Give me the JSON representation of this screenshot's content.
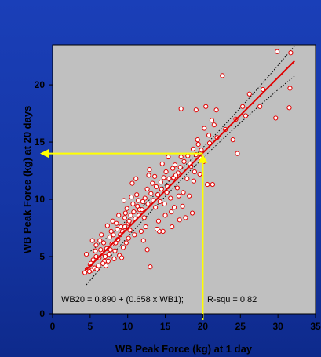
{
  "chart_data": {
    "type": "scatter",
    "title": "",
    "xlabel": "WB Peak Force (kg) at 1 day",
    "ylabel": "WB Peak Force (kg) at 20 days",
    "xlim": [
      0,
      35
    ],
    "ylim": [
      0,
      23.5
    ],
    "xticks": [
      "0",
      "5",
      "10",
      "15",
      "20",
      "25",
      "30",
      "35"
    ],
    "yticks": [
      "0",
      "5",
      "10",
      "15",
      "20"
    ],
    "grid": false,
    "plot_background": "#c0c0c0",
    "points": [
      [
        4.3,
        3.6
      ],
      [
        4.6,
        3.9
      ],
      [
        5.0,
        4.3
      ],
      [
        5.2,
        3.8
      ],
      [
        5.4,
        4.7
      ],
      [
        5.8,
        5.0
      ],
      [
        4.5,
        5.2
      ],
      [
        5.3,
        6.4
      ],
      [
        6.1,
        4.2
      ],
      [
        6.6,
        5.3
      ],
      [
        6.9,
        4.6
      ],
      [
        7.2,
        5.7
      ],
      [
        7.5,
        5.2
      ],
      [
        7.9,
        6.1
      ],
      [
        8.3,
        5.5
      ],
      [
        8.7,
        6.5
      ],
      [
        9.0,
        6.9
      ],
      [
        9.3,
        7.2
      ],
      [
        9.6,
        7.6
      ],
      [
        10.1,
        7.9
      ],
      [
        10.4,
        8.6
      ],
      [
        10.8,
        8.9
      ],
      [
        11.0,
        8.3
      ],
      [
        11.3,
        9.4
      ],
      [
        11.6,
        9.1
      ],
      [
        12.0,
        9.8
      ],
      [
        12.3,
        10.1
      ],
      [
        12.7,
        9.6
      ],
      [
        13.1,
        10.5
      ],
      [
        13.4,
        9.9
      ],
      [
        13.8,
        11.1
      ],
      [
        14.0,
        10.4
      ],
      [
        14.4,
        11.5
      ],
      [
        14.8,
        11.9
      ],
      [
        15.1,
        12.4
      ],
      [
        15.5,
        11.8
      ],
      [
        16.0,
        12.7
      ],
      [
        16.3,
        13.0
      ],
      [
        16.7,
        12.3
      ],
      [
        17.1,
        13.7
      ],
      [
        17.5,
        13.3
      ],
      [
        18.0,
        13.8
      ],
      [
        18.4,
        12.9
      ],
      [
        18.7,
        14.4
      ],
      [
        19.1,
        13.9
      ],
      [
        19.4,
        14.8
      ],
      [
        19.7,
        13.6
      ],
      [
        20.2,
        16.2
      ],
      [
        20.8,
        15.6
      ],
      [
        21.2,
        16.9
      ],
      [
        21.5,
        16.5
      ],
      [
        21.3,
        11.3
      ],
      [
        20.6,
        11.3
      ],
      [
        23.0,
        16.1
      ],
      [
        22.6,
        20.8
      ],
      [
        24.0,
        15.2
      ],
      [
        24.6,
        14.0
      ],
      [
        24.4,
        17.0
      ],
      [
        25.3,
        18.1
      ],
      [
        25.7,
        17.3
      ],
      [
        26.2,
        19.2
      ],
      [
        27.6,
        18.1
      ],
      [
        28.0,
        19.6
      ],
      [
        29.7,
        17.1
      ],
      [
        29.9,
        22.9
      ],
      [
        31.5,
        18.0
      ],
      [
        31.7,
        22.8
      ],
      [
        31.6,
        19.7
      ],
      [
        19.1,
        17.8
      ],
      [
        17.1,
        17.9
      ],
      [
        21.8,
        17.8
      ],
      [
        20.4,
        18.1
      ],
      [
        12.4,
        7.6
      ],
      [
        13.0,
        4.1
      ],
      [
        12.6,
        5.6
      ],
      [
        14.2,
        7.2
      ],
      [
        15.8,
        8.9
      ],
      [
        17.7,
        8.4
      ],
      [
        18.6,
        8.8
      ],
      [
        10.1,
        6.6
      ],
      [
        9.4,
        5.8
      ],
      [
        8.2,
        4.8
      ],
      [
        7.1,
        4.2
      ],
      [
        6.4,
        5.6
      ],
      [
        6.8,
        6.2
      ],
      [
        7.6,
        6.7
      ],
      [
        8.4,
        6.2
      ],
      [
        9.1,
        7.6
      ],
      [
        9.6,
        8.4
      ],
      [
        10.3,
        7.3
      ],
      [
        10.7,
        9.6
      ],
      [
        11.2,
        10.4
      ],
      [
        11.9,
        9.1
      ],
      [
        12.2,
        8.4
      ],
      [
        12.6,
        10.9
      ],
      [
        13.3,
        11.4
      ],
      [
        13.7,
        9.3
      ],
      [
        14.1,
        8.1
      ],
      [
        14.5,
        10.9
      ],
      [
        14.9,
        9.6
      ],
      [
        15.3,
        11.1
      ],
      [
        15.7,
        10.1
      ],
      [
        16.1,
        11.9
      ],
      [
        16.6,
        11.0
      ],
      [
        17.0,
        12.8
      ],
      [
        17.4,
        10.6
      ],
      [
        17.9,
        11.8
      ],
      [
        18.3,
        13.1
      ],
      [
        18.9,
        12.4
      ],
      [
        19.3,
        15.2
      ],
      [
        19.8,
        14.3
      ],
      [
        10.6,
        11.4
      ],
      [
        11.1,
        11.8
      ],
      [
        12.8,
        12.1
      ],
      [
        14.6,
        13.1
      ],
      [
        15.4,
        13.7
      ],
      [
        16.4,
        12.1
      ],
      [
        11.8,
        7.2
      ],
      [
        9.8,
        6.2
      ],
      [
        8.6,
        7.4
      ],
      [
        7.4,
        4.6
      ],
      [
        6.2,
        4.9
      ],
      [
        5.6,
        4.0
      ],
      [
        5.8,
        6.0
      ],
      [
        6.5,
        6.9
      ],
      [
        7.3,
        7.7
      ],
      [
        8.0,
        8.1
      ],
      [
        8.8,
        8.6
      ],
      [
        9.9,
        9.2
      ],
      [
        10.5,
        10.2
      ],
      [
        11.4,
        9.9
      ],
      [
        12.9,
        12.6
      ],
      [
        13.6,
        12.0
      ],
      [
        14.3,
        9.8
      ],
      [
        15.0,
        8.6
      ],
      [
        15.9,
        7.6
      ],
      [
        16.9,
        8.2
      ],
      [
        17.3,
        9.4
      ],
      [
        18.2,
        10.3
      ],
      [
        18.8,
        11.6
      ],
      [
        19.6,
        12.2
      ],
      [
        20.1,
        13.3
      ],
      [
        20.9,
        14.9
      ],
      [
        21.9,
        15.4
      ],
      [
        8.9,
        5.1
      ],
      [
        9.2,
        4.9
      ],
      [
        10.9,
        6.9
      ],
      [
        12.1,
        6.4
      ],
      [
        13.9,
        7.4
      ],
      [
        14.7,
        7.2
      ],
      [
        16.2,
        9.3
      ],
      [
        15.2,
        10.6
      ],
      [
        16.8,
        10.3
      ],
      [
        10.2,
        8.1
      ],
      [
        11.5,
        8.6
      ],
      [
        9.5,
        9.9
      ],
      [
        8.1,
        6.9
      ],
      [
        7.7,
        5.6
      ],
      [
        6.7,
        4.4
      ],
      [
        5.9,
        3.9
      ],
      [
        4.9,
        3.7
      ],
      [
        5.1,
        4.4
      ],
      [
        5.7,
        5.5
      ],
      [
        6.3,
        6.4
      ],
      [
        7.0,
        5.0
      ],
      [
        7.8,
        7.2
      ],
      [
        8.5,
        7.9
      ],
      [
        9.7,
        8.8
      ]
    ],
    "regression": {
      "intercept": 0.89,
      "slope": 0.658,
      "x_range": [
        4.5,
        32.2
      ],
      "color": "#e00000",
      "ci_color": "#000000",
      "ci_style": "dotted",
      "r_squared": 0.82
    },
    "equation_text": "WB20 = 0.890 + (0.658 x WB1);",
    "r2_text": "R-squ = 0.82",
    "marker": {
      "fill": "#ffffff",
      "stroke": "#e00000"
    },
    "annotation": {
      "x": 20,
      "y": 14,
      "color": "#ffff00",
      "description": "yellow arrows from x=20 up to the fit line and across to the y-axis at 14"
    }
  }
}
